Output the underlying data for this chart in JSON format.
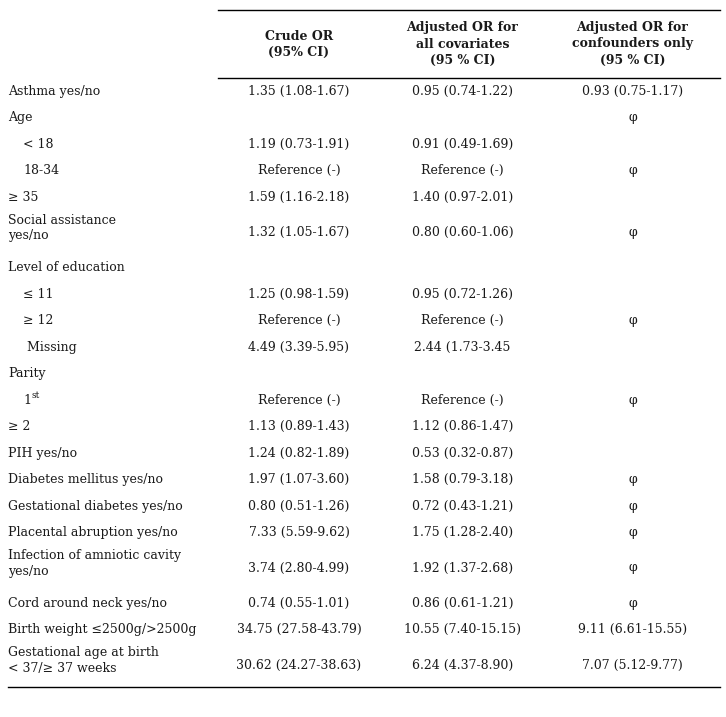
{
  "col_headers": [
    "Crude OR\n(95% CI)",
    "Adjusted OR for\nall covariates\n(95 % CI)",
    "Adjusted OR for\nconfounders only\n(95 % CI)"
  ],
  "rows": [
    {
      "label": "Asthma yes/no",
      "indent": false,
      "sup": "",
      "col1": "1.35 (1.08-1.67)",
      "col2": "0.95 (0.74-1.22)",
      "col3": "0.93 (0.75-1.17)",
      "two_line": false
    },
    {
      "label": "Age",
      "indent": false,
      "sup": "",
      "col1": "",
      "col2": "",
      "col3": "φ",
      "two_line": false
    },
    {
      "label": "< 18",
      "indent": true,
      "sup": "",
      "col1": "1.19 (0.73-1.91)",
      "col2": "0.91 (0.49-1.69)",
      "col3": "",
      "two_line": false
    },
    {
      "label": "18-34",
      "indent": true,
      "sup": "",
      "col1": "Reference (-)",
      "col2": "Reference (-)",
      "col3": "φ",
      "two_line": false
    },
    {
      "label": "≥ 35",
      "indent": false,
      "sup": "",
      "col1": "1.59 (1.16-2.18)",
      "col2": "1.40 (0.97-2.01)",
      "col3": "",
      "two_line": false
    },
    {
      "label": "Social assistance\nyes/no",
      "indent": false,
      "sup": "",
      "col1": "1.32 (1.05-1.67)",
      "col2": "0.80 (0.60-1.06)",
      "col3": "φ",
      "two_line": true
    },
    {
      "label": "Level of education",
      "indent": false,
      "sup": "",
      "col1": "",
      "col2": "",
      "col3": "",
      "two_line": false
    },
    {
      "label": "≤ 11",
      "indent": true,
      "sup": "",
      "col1": "1.25 (0.98-1.59)",
      "col2": "0.95 (0.72-1.26)",
      "col3": "",
      "two_line": false
    },
    {
      "label": "≥ 12",
      "indent": true,
      "sup": "",
      "col1": "Reference (-)",
      "col2": "Reference (-)",
      "col3": "φ",
      "two_line": false
    },
    {
      "label": " Missing",
      "indent": true,
      "sup": "",
      "col1": "4.49 (3.39-5.95)",
      "col2": "2.44 (1.73-3.45",
      "col3": "",
      "two_line": false
    },
    {
      "label": "Parity",
      "indent": false,
      "sup": "",
      "col1": "",
      "col2": "",
      "col3": "",
      "two_line": false
    },
    {
      "label": "1",
      "indent": true,
      "sup": "st",
      "col1": "Reference (-)",
      "col2": "Reference (-)",
      "col3": "φ",
      "two_line": false
    },
    {
      "label": "≥ 2",
      "indent": false,
      "sup": "",
      "col1": "1.13 (0.89-1.43)",
      "col2": "1.12 (0.86-1.47)",
      "col3": "",
      "two_line": false
    },
    {
      "label": "PIH yes/no",
      "indent": false,
      "sup": "",
      "col1": "1.24 (0.82-1.89)",
      "col2": "0.53 (0.32-0.87)",
      "col3": "",
      "two_line": false
    },
    {
      "label": "Diabetes mellitus yes/no",
      "indent": false,
      "sup": "",
      "col1": "1.97 (1.07-3.60)",
      "col2": "1.58 (0.79-3.18)",
      "col3": "φ",
      "two_line": false
    },
    {
      "label": "Gestational diabetes yes/no",
      "indent": false,
      "sup": "",
      "col1": "0.80 (0.51-1.26)",
      "col2": "0.72 (0.43-1.21)",
      "col3": "φ",
      "two_line": false
    },
    {
      "label": "Placental abruption yes/no",
      "indent": false,
      "sup": "",
      "col1": "7.33 (5.59-9.62)",
      "col2": "1.75 (1.28-2.40)",
      "col3": "φ",
      "two_line": false
    },
    {
      "label": "Infection of amniotic cavity\nyes/no",
      "indent": false,
      "sup": "",
      "col1": "3.74 (2.80-4.99)",
      "col2": "1.92 (1.37-2.68)",
      "col3": "φ",
      "two_line": true
    },
    {
      "label": "Cord around neck yes/no",
      "indent": false,
      "sup": "",
      "col1": "0.74 (0.55-1.01)",
      "col2": "0.86 (0.61-1.21)",
      "col3": "φ",
      "two_line": false
    },
    {
      "label": "Birth weight ≤2500g/>2500g",
      "indent": false,
      "sup": "",
      "col1": "34.75 (27.58-43.79)",
      "col2": "10.55 (7.40-15.15)",
      "col3": "9.11 (6.61-15.55)",
      "two_line": false
    },
    {
      "label": "Gestational age at birth\n< 37/≥ 37 weeks",
      "indent": false,
      "sup": "",
      "col1": "30.62 (24.27-38.63)",
      "col2": "6.24 (4.37-8.90)",
      "col3": "7.07 (5.12-9.77)",
      "two_line": true
    }
  ],
  "bg": "#ffffff",
  "fg": "#1a1a1a",
  "fs": 9.0,
  "hfs": 9.0
}
